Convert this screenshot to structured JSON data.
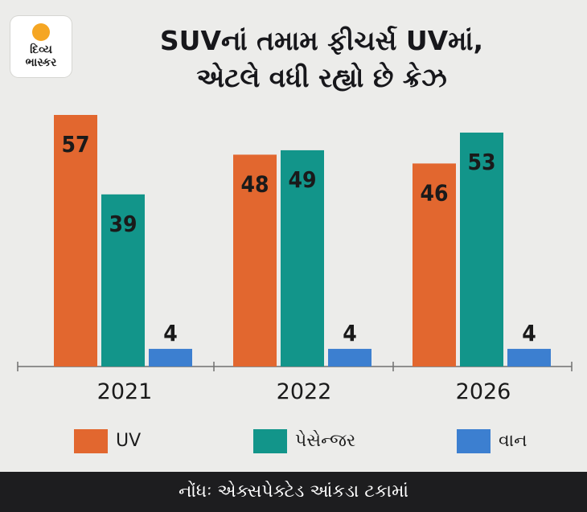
{
  "logo": {
    "line1": "દિવ્ય",
    "line2": "ભાસ્કર"
  },
  "chart_data": {
    "type": "bar",
    "title_line1": "SUVનાં તમામ ફીચર્સ UVમાં,",
    "title_line2": "એટલે વધી રહ્યો છે ક્રેઝ",
    "categories": [
      "2021",
      "2022",
      "2026"
    ],
    "series": [
      {
        "name": "UV",
        "color": "#e2672f",
        "values": [
          57,
          48,
          46
        ]
      },
      {
        "name": "પેસેન્જર",
        "color": "#12958a",
        "values": [
          39,
          49,
          53
        ]
      },
      {
        "name": "વાન",
        "color": "#3c7fd0",
        "values": [
          4,
          4,
          4
        ]
      }
    ],
    "ylim": [
      0,
      57
    ],
    "grid": false,
    "legend_position": "bottom",
    "note": "નોંધઃ એક્સપેક્ટેડ આંકડા ટકામાં"
  }
}
